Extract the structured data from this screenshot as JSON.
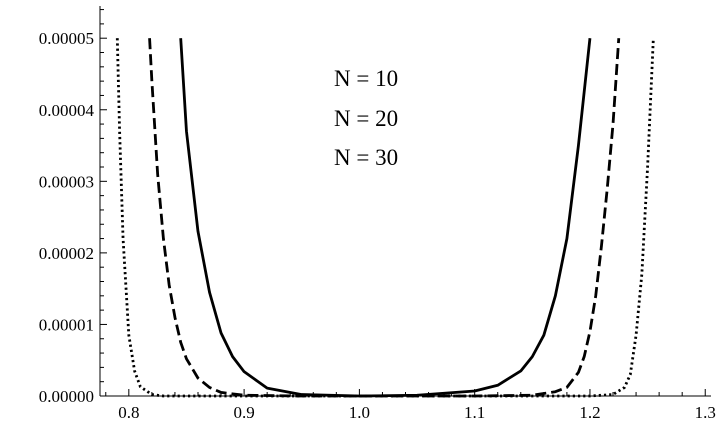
{
  "chart_data": {
    "type": "line",
    "title": "",
    "xlabel": "",
    "ylabel": "",
    "xlim": [
      0.775,
      1.305
    ],
    "ylim": [
      0,
      5.45e-05
    ],
    "x_ticks": [
      "0.8",
      "0.9",
      "1.0",
      "1.1",
      "1.2",
      "1.3"
    ],
    "y_ticks": [
      "0.00000",
      "0.00001",
      "0.00002",
      "0.00003",
      "0.00004",
      "0.00005"
    ],
    "annotations": [
      "N = 10",
      "N = 20",
      "N = 30"
    ],
    "grid": false,
    "series": [
      {
        "label_ref": "N = 10",
        "style": "solid",
        "color": "#000000",
        "x": [
          0.845,
          0.85,
          0.86,
          0.87,
          0.88,
          0.89,
          0.9,
          0.92,
          0.95,
          1.0,
          1.05,
          1.1,
          1.12,
          1.14,
          1.15,
          1.16,
          1.17,
          1.18,
          1.19,
          1.2
        ],
        "y": [
          5e-05,
          3.7e-05,
          2.3e-05,
          1.45e-05,
          8.8e-06,
          5.5e-06,
          3.4e-06,
          1.1e-06,
          2e-07,
          0.0,
          1e-07,
          7e-07,
          1.5e-06,
          3.5e-06,
          5.5e-06,
          8.5e-06,
          1.4e-05,
          2.2e-05,
          3.5e-05,
          5e-05
        ]
      },
      {
        "label_ref": "N = 20",
        "style": "dashed",
        "color": "#000000",
        "x": [
          0.818,
          0.82,
          0.825,
          0.83,
          0.835,
          0.84,
          0.845,
          0.85,
          0.86,
          0.87,
          0.88,
          0.9,
          0.95,
          1.0,
          1.05,
          1.1,
          1.15,
          1.17,
          1.18,
          1.19,
          1.195,
          1.2,
          1.205,
          1.21,
          1.215,
          1.22,
          1.225
        ],
        "y": [
          5e-05,
          4.4e-05,
          3.1e-05,
          2.2e-05,
          1.55e-05,
          1.1e-05,
          7.5e-06,
          5.2e-06,
          2.5e-06,
          1.2e-06,
          5e-07,
          1e-07,
          0.0,
          0.0,
          0.0,
          0.0,
          1e-07,
          6e-07,
          1.2e-06,
          3.3e-06,
          5.5e-06,
          9e-06,
          1.4e-05,
          2.1e-05,
          2.9e-05,
          3.8e-05,
          5e-05
        ]
      },
      {
        "label_ref": "N = 30",
        "style": "dotted",
        "color": "#000000",
        "x": [
          0.79,
          0.792,
          0.795,
          0.8,
          0.805,
          0.81,
          0.82,
          0.83,
          0.85,
          0.9,
          1.0,
          1.1,
          1.2,
          1.22,
          1.23,
          1.235,
          1.24,
          1.245,
          1.25,
          1.255
        ],
        "y": [
          5e-05,
          3.7e-05,
          2.2e-05,
          8.5e-06,
          3.5e-06,
          1.3e-06,
          2e-07,
          0.0,
          0.0,
          0.0,
          0.0,
          0.0,
          0.0,
          2e-07,
          1.2e-06,
          3e-06,
          8.5e-06,
          1.7e-05,
          3.2e-05,
          5e-05
        ]
      }
    ]
  }
}
